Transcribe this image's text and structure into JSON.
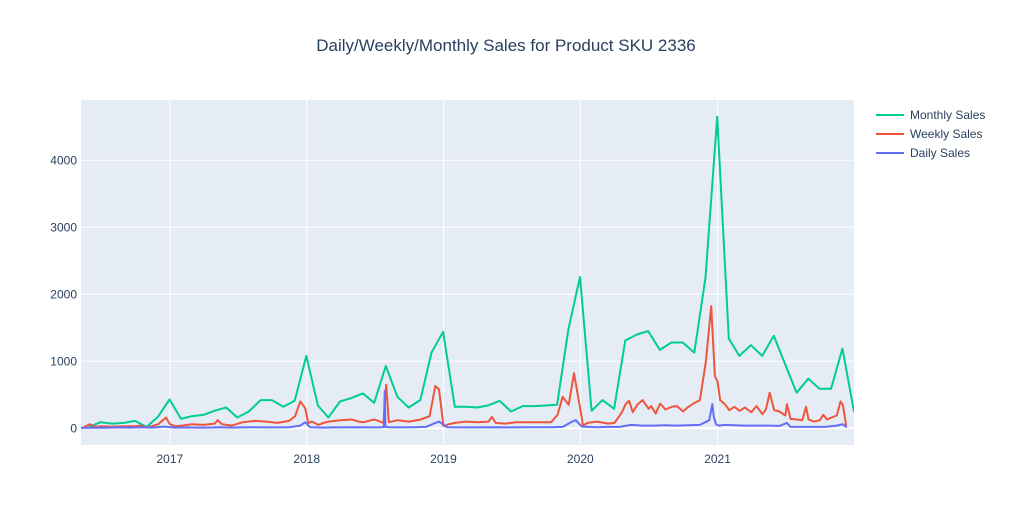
{
  "chart_data": {
    "type": "line",
    "title": "Daily/Weekly/Monthly Sales for Product SKU 2336",
    "xlabel": "",
    "ylabel": "",
    "xlim": [
      "2016-05-09",
      "2021-12-31"
    ],
    "ylim": [
      -250,
      4900
    ],
    "x_ticks": [
      "2017-01-01",
      "2018-01-01",
      "2019-01-01",
      "2020-01-01",
      "2021-01-01"
    ],
    "x_tick_labels": [
      "2017",
      "2018",
      "2019",
      "2020",
      "2021"
    ],
    "y_ticks": [
      0,
      1000,
      2000,
      3000,
      4000
    ],
    "y_tick_labels": [
      "0",
      "1000",
      "2000",
      "3000",
      "4000"
    ],
    "grid": true,
    "legend_position": "top-right",
    "series": [
      {
        "name": "Monthly Sales",
        "color": "#00cc96",
        "x": [
          "2016-05-31",
          "2016-06-30",
          "2016-07-31",
          "2016-08-31",
          "2016-09-30",
          "2016-10-31",
          "2016-11-30",
          "2016-12-31",
          "2017-01-31",
          "2017-02-28",
          "2017-03-31",
          "2017-04-30",
          "2017-05-31",
          "2017-06-30",
          "2017-07-31",
          "2017-08-31",
          "2017-09-30",
          "2017-10-31",
          "2017-11-30",
          "2017-12-31",
          "2018-01-31",
          "2018-02-28",
          "2018-03-31",
          "2018-04-30",
          "2018-05-31",
          "2018-06-30",
          "2018-07-31",
          "2018-08-31",
          "2018-09-30",
          "2018-10-31",
          "2018-11-30",
          "2018-12-31",
          "2019-01-31",
          "2019-02-28",
          "2019-03-31",
          "2019-04-30",
          "2019-05-31",
          "2019-06-30",
          "2019-07-31",
          "2019-08-31",
          "2019-09-30",
          "2019-10-31",
          "2019-11-30",
          "2019-12-31",
          "2020-01-31",
          "2020-02-29",
          "2020-03-31",
          "2020-04-30",
          "2020-05-31",
          "2020-06-30",
          "2020-07-31",
          "2020-08-31",
          "2020-09-30",
          "2020-10-31",
          "2020-11-30",
          "2020-12-31",
          "2021-01-31",
          "2021-02-28",
          "2021-03-31",
          "2021-04-30",
          "2021-05-31",
          "2021-06-30",
          "2021-07-31",
          "2021-08-31",
          "2021-09-30",
          "2021-10-31",
          "2021-11-30",
          "2021-12-31"
        ],
        "y": [
          20,
          90,
          70,
          80,
          110,
          20,
          170,
          430,
          140,
          180,
          200,
          260,
          310,
          160,
          250,
          420,
          420,
          320,
          410,
          1080,
          340,
          160,
          400,
          450,
          520,
          380,
          930,
          470,
          310,
          420,
          1130,
          1440,
          320,
          320,
          310,
          340,
          410,
          250,
          330,
          330,
          340,
          350,
          1470,
          2260,
          260,
          420,
          290,
          1310,
          1400,
          1450,
          1170,
          1280,
          1280,
          1130,
          2250,
          4650,
          1340,
          1080,
          1240,
          1080,
          1380,
          960,
          530,
          740,
          590,
          590,
          1190,
          250
        ]
      },
      {
        "name": "Weekly Sales",
        "color": "#ef553b",
        "x": [
          "2016-05-15",
          "2016-06-01",
          "2016-06-15",
          "2016-07-01",
          "2016-08-01",
          "2016-09-01",
          "2016-10-01",
          "2016-10-15",
          "2016-11-01",
          "2016-12-01",
          "2016-12-22",
          "2017-01-01",
          "2017-01-15",
          "2017-02-01",
          "2017-03-01",
          "2017-04-01",
          "2017-05-01",
          "2017-05-08",
          "2017-05-20",
          "2017-06-15",
          "2017-07-15",
          "2017-08-15",
          "2017-09-15",
          "2017-10-15",
          "2017-11-15",
          "2017-12-01",
          "2017-12-15",
          "2017-12-28",
          "2018-01-05",
          "2018-01-15",
          "2018-02-01",
          "2018-02-15",
          "2018-03-01",
          "2018-04-01",
          "2018-05-01",
          "2018-05-20",
          "2018-06-01",
          "2018-07-01",
          "2018-07-25",
          "2018-08-01",
          "2018-08-08",
          "2018-09-01",
          "2018-10-01",
          "2018-11-01",
          "2018-11-25",
          "2018-12-10",
          "2018-12-20",
          "2019-01-01",
          "2019-01-15",
          "2019-02-01",
          "2019-03-01",
          "2019-04-01",
          "2019-05-01",
          "2019-05-10",
          "2019-05-20",
          "2019-06-15",
          "2019-07-15",
          "2019-08-15",
          "2019-09-15",
          "2019-10-15",
          "2019-11-01",
          "2019-11-15",
          "2019-12-01",
          "2019-12-15",
          "2019-12-31",
          "2020-01-08",
          "2020-01-20",
          "2020-02-15",
          "2020-03-15",
          "2020-04-01",
          "2020-04-20",
          "2020-05-01",
          "2020-05-10",
          "2020-05-20",
          "2020-06-01",
          "2020-06-15",
          "2020-07-01",
          "2020-07-08",
          "2020-07-20",
          "2020-08-01",
          "2020-08-15",
          "2020-09-01",
          "2020-09-15",
          "2020-10-01",
          "2020-10-15",
          "2020-11-01",
          "2020-11-15",
          "2020-12-01",
          "2020-12-15",
          "2020-12-25",
          "2021-01-01",
          "2021-01-08",
          "2021-01-22",
          "2021-02-01",
          "2021-02-15",
          "2021-03-01",
          "2021-03-15",
          "2021-04-01",
          "2021-04-15",
          "2021-05-01",
          "2021-05-10",
          "2021-05-20",
          "2021-06-01",
          "2021-06-15",
          "2021-07-01",
          "2021-07-05",
          "2021-07-15",
          "2021-08-01",
          "2021-08-15",
          "2021-08-25",
          "2021-09-01",
          "2021-09-15",
          "2021-10-01",
          "2021-10-10",
          "2021-10-20",
          "2021-11-01",
          "2021-11-15",
          "2021-11-25",
          "2021-12-01",
          "2021-12-10"
        ],
        "y": [
          10,
          60,
          20,
          30,
          25,
          30,
          30,
          40,
          10,
          60,
          160,
          60,
          30,
          40,
          60,
          50,
          70,
          120,
          60,
          40,
          90,
          110,
          100,
          80,
          110,
          180,
          400,
          300,
          80,
          100,
          50,
          80,
          100,
          120,
          130,
          100,
          90,
          130,
          80,
          650,
          90,
          120,
          100,
          130,
          180,
          630,
          580,
          30,
          60,
          80,
          100,
          90,
          100,
          170,
          80,
          70,
          90,
          90,
          90,
          90,
          200,
          470,
          350,
          820,
          310,
          40,
          80,
          100,
          70,
          80,
          230,
          360,
          410,
          240,
          350,
          420,
          290,
          330,
          220,
          370,
          280,
          320,
          330,
          250,
          320,
          380,
          420,
          1000,
          1820,
          780,
          700,
          420,
          350,
          270,
          320,
          260,
          310,
          240,
          330,
          210,
          280,
          530,
          270,
          250,
          190,
          360,
          140,
          130,
          120,
          320,
          130,
          100,
          120,
          200,
          130,
          160,
          190,
          400,
          350,
          50
        ]
      },
      {
        "name": "Daily Sales",
        "color": "#636efa",
        "x": [
          "2016-05-09",
          "2016-06-15",
          "2016-07-15",
          "2016-08-15",
          "2016-09-15",
          "2016-10-15",
          "2016-11-15",
          "2016-12-15",
          "2017-01-15",
          "2017-02-15",
          "2017-03-15",
          "2017-04-15",
          "2017-05-15",
          "2017-06-15",
          "2017-07-15",
          "2017-08-15",
          "2017-09-15",
          "2017-10-15",
          "2017-11-15",
          "2017-12-15",
          "2017-12-28",
          "2018-01-10",
          "2018-02-15",
          "2018-03-15",
          "2018-04-15",
          "2018-05-15",
          "2018-06-15",
          "2018-07-15",
          "2018-07-26",
          "2018-07-28",
          "2018-07-30",
          "2018-08-10",
          "2018-09-15",
          "2018-10-15",
          "2018-11-15",
          "2018-12-10",
          "2018-12-20",
          "2019-01-10",
          "2019-02-15",
          "2019-03-15",
          "2019-04-15",
          "2019-05-15",
          "2019-06-15",
          "2019-07-15",
          "2019-08-15",
          "2019-09-15",
          "2019-10-15",
          "2019-11-15",
          "2019-12-10",
          "2019-12-20",
          "2020-01-05",
          "2020-01-20",
          "2020-02-15",
          "2020-03-15",
          "2020-04-15",
          "2020-05-15",
          "2020-06-15",
          "2020-07-15",
          "2020-08-15",
          "2020-09-15",
          "2020-10-15",
          "2020-11-15",
          "2020-12-10",
          "2020-12-18",
          "2020-12-22",
          "2020-12-28",
          "2021-01-05",
          "2021-01-20",
          "2021-02-15",
          "2021-03-15",
          "2021-04-15",
          "2021-05-15",
          "2021-06-15",
          "2021-07-05",
          "2021-07-15",
          "2021-08-15",
          "2021-09-15",
          "2021-10-15",
          "2021-11-15",
          "2021-12-01",
          "2021-12-10"
        ],
        "y": [
          5,
          10,
          8,
          12,
          10,
          15,
          10,
          25,
          10,
          12,
          10,
          10,
          15,
          10,
          12,
          15,
          12,
          12,
          15,
          40,
          90,
          15,
          10,
          12,
          12,
          15,
          12,
          12,
          20,
          560,
          20,
          15,
          12,
          15,
          20,
          80,
          100,
          15,
          12,
          12,
          12,
          15,
          12,
          12,
          15,
          15,
          15,
          20,
          100,
          120,
          25,
          20,
          15,
          20,
          20,
          50,
          40,
          40,
          45,
          40,
          45,
          50,
          120,
          360,
          170,
          60,
          40,
          50,
          45,
          40,
          40,
          40,
          35,
          80,
          20,
          20,
          20,
          20,
          40,
          60,
          20
        ]
      }
    ]
  }
}
